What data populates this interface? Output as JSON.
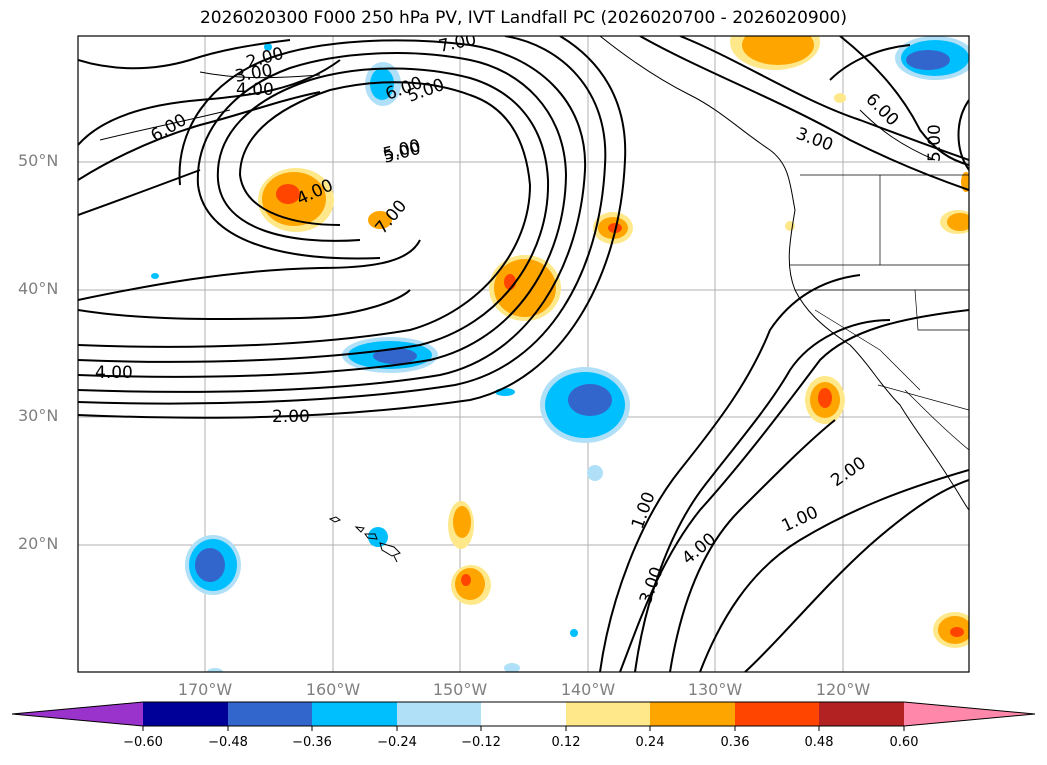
{
  "title": "2026020300 F000 250 hPa PV, IVT Landfall PC (2026020700 - 2026020900)",
  "axes": {
    "lat_labels": [
      "50°N",
      "40°N",
      "30°N",
      "20°N"
    ],
    "lon_labels": [
      "170°W",
      "160°W",
      "150°W",
      "140°W",
      "130°W",
      "120°W"
    ]
  },
  "contour_labels": [
    "7.00",
    "2.00",
    "3.00",
    "4.00",
    "5.00",
    "6.00",
    "6.00",
    "5.00",
    "3.00",
    "6.00",
    "5.00",
    "4.00",
    "5.00",
    "7.00",
    "4.00",
    "2.00",
    "1.00",
    "3.00",
    "4.00",
    "1.00",
    "2.00"
  ],
  "colorbar": {
    "ticks": [
      "−0.60",
      "−0.48",
      "−0.36",
      "−0.24",
      "−0.12",
      "0.12",
      "0.24",
      "0.36",
      "0.48",
      "0.60"
    ],
    "colors": [
      "#9933cc",
      "#000099",
      "#3366cc",
      "#00bfff",
      "#b0e0f8",
      "#ffffff",
      "#ffe88a",
      "#ffa500",
      "#ff4500",
      "#b22222",
      "#ff88aa"
    ]
  }
}
